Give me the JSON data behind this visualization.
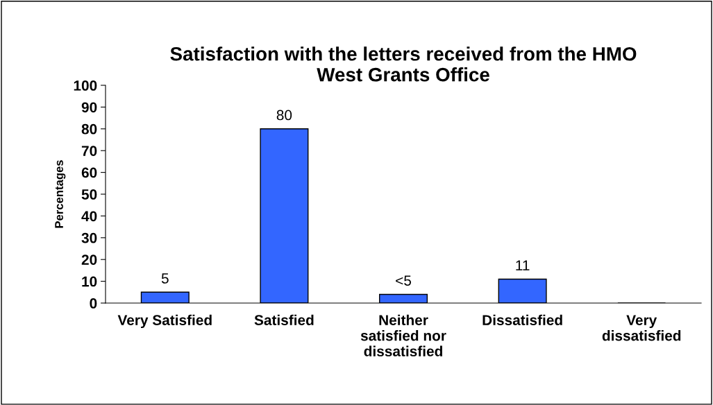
{
  "chart_data": {
    "type": "bar",
    "title": "Satisfaction with the letters received from the HMO\nWest Grants Office",
    "ylabel": "Percentages",
    "categories": [
      "Very Satisfied",
      "Satisfied",
      "Neither\nsatisfied nor\ndissatisfied",
      "Dissatisfied",
      "Very\ndissatisfied"
    ],
    "values": [
      5,
      80,
      4,
      11,
      null
    ],
    "value_labels": [
      "5",
      "80",
      "<5",
      "11",
      null
    ],
    "color": "#3366ff",
    "ylim": [
      0,
      100
    ],
    "yticks": [
      0,
      10,
      20,
      30,
      40,
      50,
      60,
      70,
      80,
      90,
      100
    ],
    "grid": false,
    "legend": false
  }
}
